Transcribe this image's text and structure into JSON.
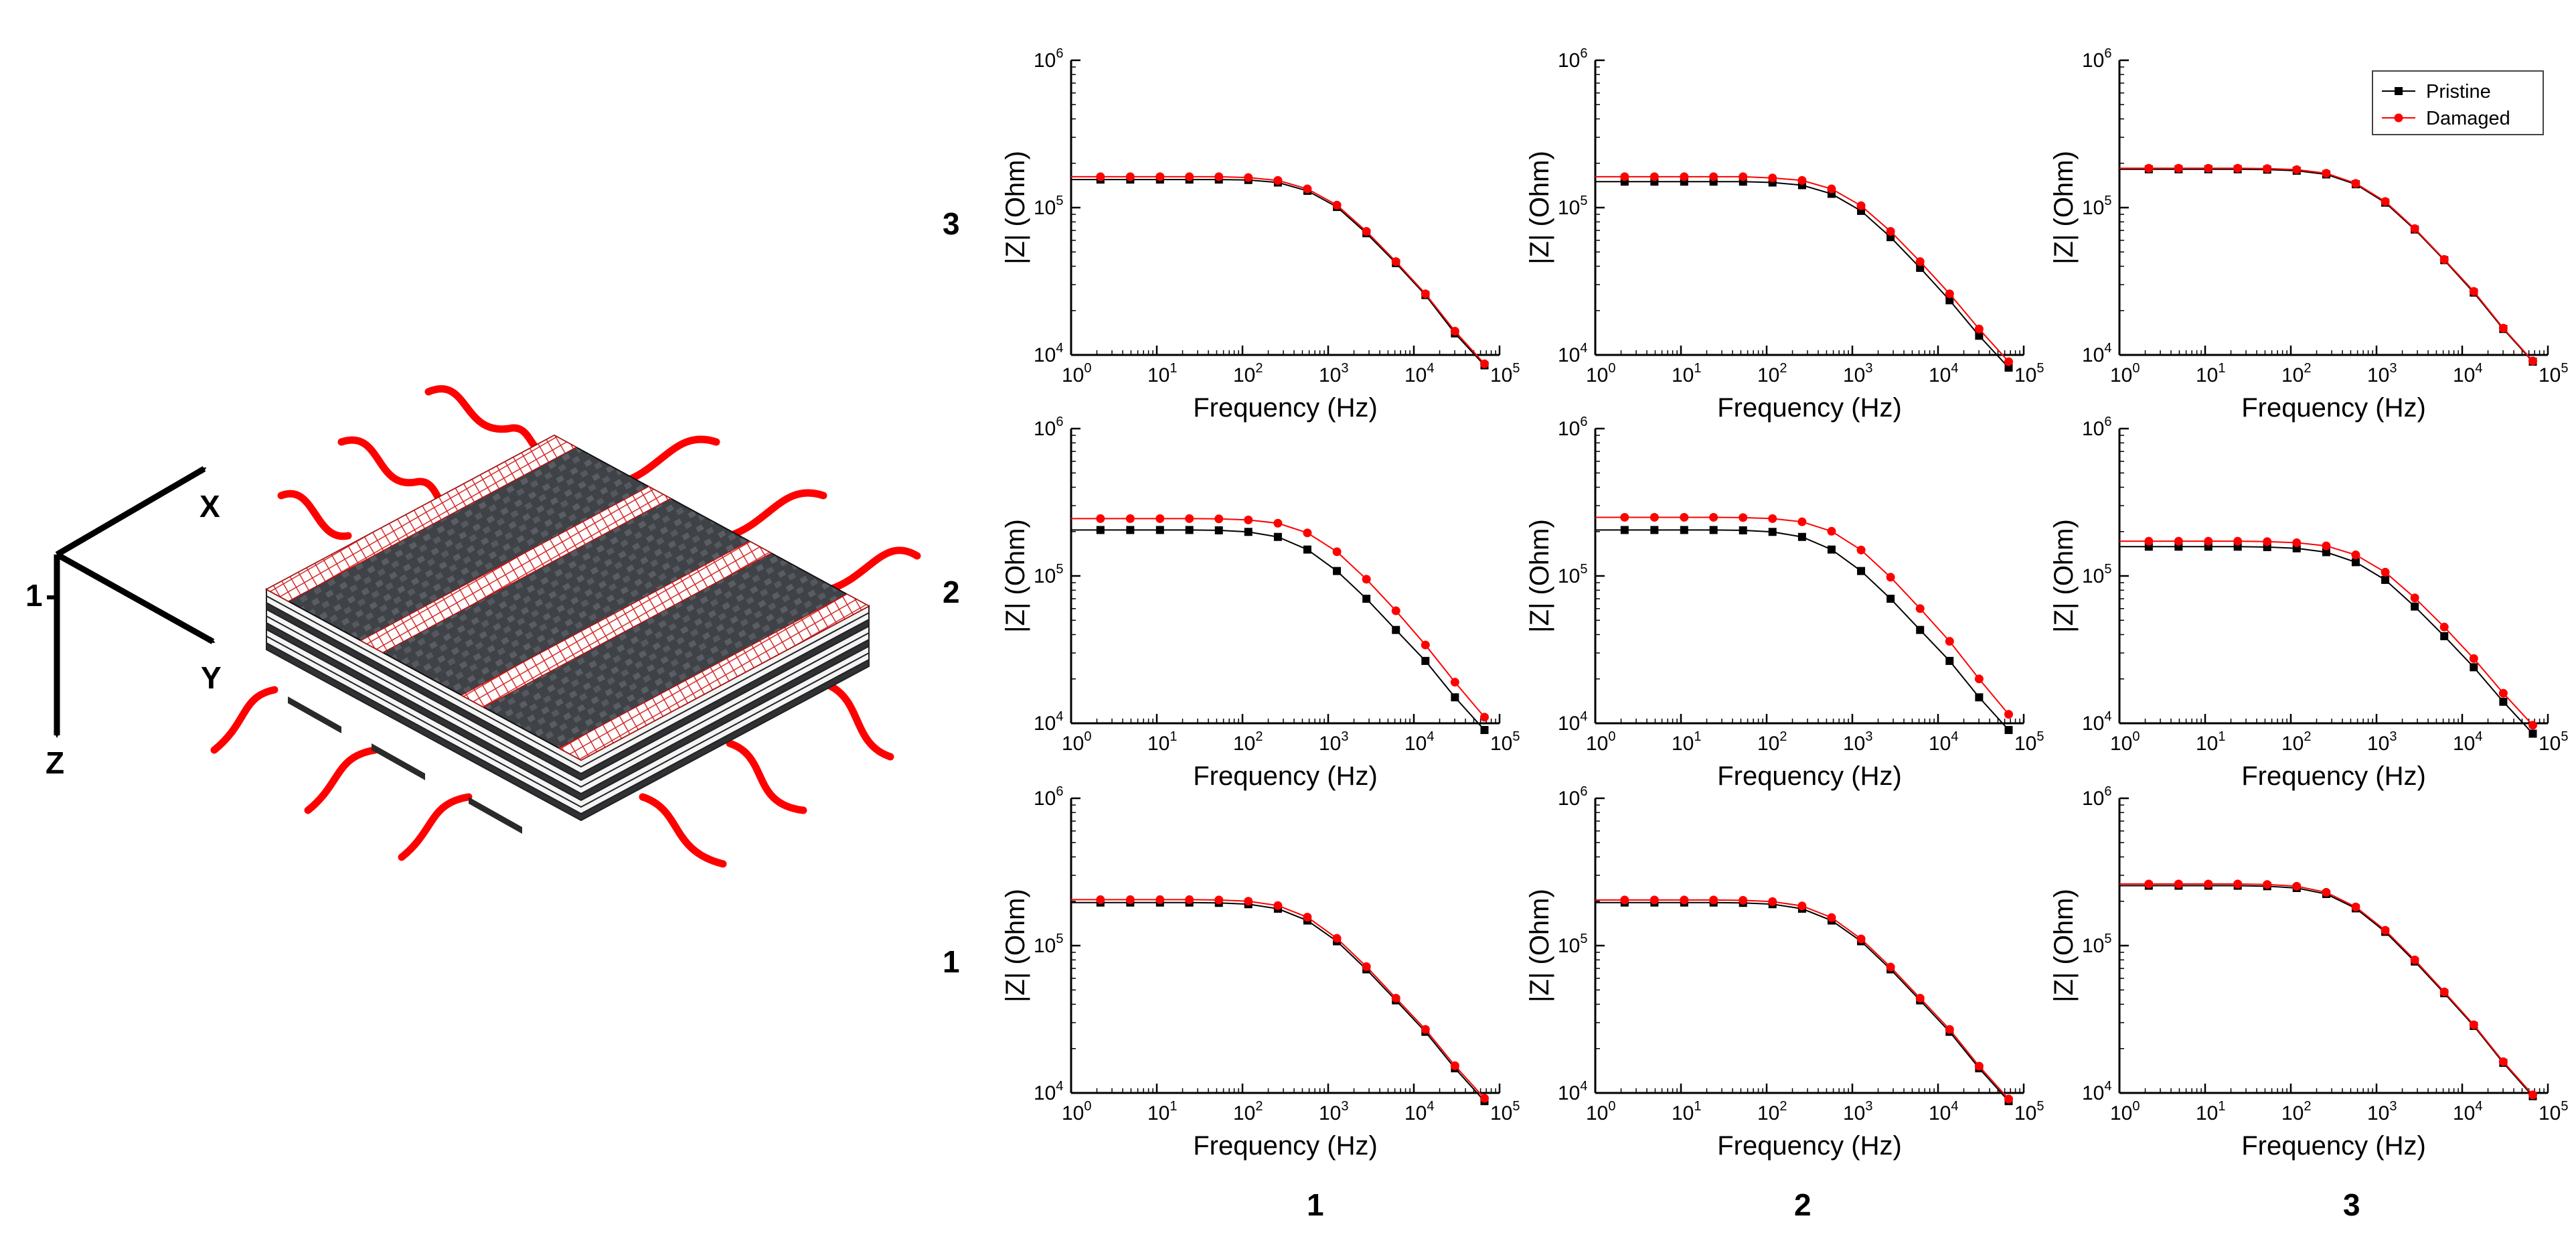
{
  "figure": {
    "axes_label": {
      "x": "X",
      "y": "Y",
      "z": "Z",
      "origin": "1"
    },
    "row_labels": [
      "3",
      "2",
      "1"
    ],
    "col_labels": [
      "1",
      "2",
      "3"
    ],
    "colors": {
      "pristine": "#000000",
      "damaged": "#ff0000",
      "laminate_dark": "#4a4d52",
      "laminate_grid": "#cc2222"
    }
  },
  "chart_data": [
    {
      "type": "line",
      "row": "3",
      "col": "1",
      "xlabel": "Frequency (Hz)",
      "ylabel": "|Z| (Ohm)",
      "xscale": "log",
      "yscale": "log",
      "xlim": [
        1,
        100000
      ],
      "ylim": [
        10000,
        1000000
      ],
      "xticks": [
        "10^0",
        "10^1",
        "10^2",
        "10^3",
        "10^4",
        "10^5"
      ],
      "yticks": [
        "10^4",
        "10^5",
        "10^6"
      ],
      "legend": false,
      "series": [
        {
          "name": "Pristine",
          "x": [
            2.2,
            4.9,
            10.9,
            24,
            53,
            117,
            259,
            572,
            1265,
            2795,
            6177,
            13650,
            30170,
            66700
          ],
          "y": [
            155000,
            155000,
            155000,
            155000,
            155000,
            154000,
            148000,
            130000,
            101000,
            67000,
            42000,
            25500,
            14000,
            8500
          ]
        },
        {
          "name": "Damaged",
          "x": [
            2.2,
            4.9,
            10.9,
            24,
            53,
            117,
            259,
            572,
            1265,
            2795,
            6177,
            13650,
            30170,
            66700
          ],
          "y": [
            162000,
            162000,
            162000,
            162000,
            162000,
            160000,
            153000,
            134000,
            104000,
            69000,
            43000,
            26000,
            14500,
            8700
          ]
        }
      ]
    },
    {
      "type": "line",
      "row": "3",
      "col": "2",
      "xlabel": "Frequency (Hz)",
      "ylabel": "|Z| (Ohm)",
      "xscale": "log",
      "yscale": "log",
      "xlim": [
        1,
        100000
      ],
      "ylim": [
        10000,
        1000000
      ],
      "xticks": [
        "10^0",
        "10^1",
        "10^2",
        "10^3",
        "10^4",
        "10^5"
      ],
      "yticks": [
        "10^4",
        "10^5",
        "10^6"
      ],
      "legend": false,
      "series": [
        {
          "name": "Pristine",
          "x": [
            2.2,
            4.9,
            10.9,
            24,
            53,
            117,
            259,
            572,
            1265,
            2795,
            6177,
            13650,
            30170,
            66700
          ],
          "y": [
            150000,
            150000,
            150000,
            150000,
            150000,
            148000,
            142000,
            124000,
            95000,
            63000,
            39000,
            23500,
            13500,
            8200
          ]
        },
        {
          "name": "Damaged",
          "x": [
            2.2,
            4.9,
            10.9,
            24,
            53,
            117,
            259,
            572,
            1265,
            2795,
            6177,
            13650,
            30170,
            66700
          ],
          "y": [
            162000,
            162000,
            162000,
            162000,
            162000,
            159000,
            153000,
            134000,
            103000,
            69000,
            43000,
            26000,
            15000,
            9000
          ]
        }
      ]
    },
    {
      "type": "line",
      "row": "3",
      "col": "3",
      "xlabel": "Frequency (Hz)",
      "ylabel": "|Z| (Ohm)",
      "xscale": "log",
      "yscale": "log",
      "xlim": [
        1,
        100000
      ],
      "ylim": [
        10000,
        1000000
      ],
      "xticks": [
        "10^0",
        "10^1",
        "10^2",
        "10^3",
        "10^4",
        "10^5"
      ],
      "yticks": [
        "10^4",
        "10^5",
        "10^6"
      ],
      "legend": true,
      "legend_position": "top-right",
      "series": [
        {
          "name": "Pristine",
          "x": [
            2.2,
            4.9,
            10.9,
            24,
            53,
            117,
            259,
            572,
            1265,
            2795,
            6177,
            13650,
            30170,
            66700
          ],
          "y": [
            182000,
            182000,
            182000,
            182000,
            181000,
            178000,
            168000,
            144000,
            108000,
            71000,
            44000,
            26500,
            15000,
            9000
          ]
        },
        {
          "name": "Damaged",
          "x": [
            2.2,
            4.9,
            10.9,
            24,
            53,
            117,
            259,
            572,
            1265,
            2795,
            6177,
            13650,
            30170,
            66700
          ],
          "y": [
            185000,
            185000,
            185000,
            185000,
            184000,
            181000,
            171000,
            146000,
            110000,
            72000,
            44500,
            27000,
            15200,
            9100
          ]
        }
      ]
    },
    {
      "type": "line",
      "row": "2",
      "col": "1",
      "xlabel": "Frequency (Hz)",
      "ylabel": "|Z| (Ohm)",
      "xscale": "log",
      "yscale": "log",
      "xlim": [
        1,
        100000
      ],
      "ylim": [
        10000,
        1000000
      ],
      "xticks": [
        "10^0",
        "10^1",
        "10^2",
        "10^3",
        "10^4",
        "10^5"
      ],
      "yticks": [
        "10^4",
        "10^5",
        "10^6"
      ],
      "legend": false,
      "series": [
        {
          "name": "Pristine",
          "x": [
            2.2,
            4.9,
            10.9,
            24,
            53,
            117,
            259,
            572,
            1265,
            2795,
            6177,
            13650,
            30170,
            66700
          ],
          "y": [
            205000,
            205000,
            205000,
            205000,
            204000,
            199000,
            184000,
            151000,
            108000,
            70000,
            43000,
            26500,
            15000,
            9000
          ]
        },
        {
          "name": "Damaged",
          "x": [
            2.2,
            4.9,
            10.9,
            24,
            53,
            117,
            259,
            572,
            1265,
            2795,
            6177,
            13650,
            30170,
            66700
          ],
          "y": [
            245000,
            245000,
            245000,
            245000,
            244000,
            240000,
            228000,
            196000,
            146000,
            95000,
            58000,
            34000,
            19000,
            11000
          ]
        }
      ]
    },
    {
      "type": "line",
      "row": "2",
      "col": "2",
      "xlabel": "Frequency (Hz)",
      "ylabel": "|Z| (Ohm)",
      "xscale": "log",
      "yscale": "log",
      "xlim": [
        1,
        100000
      ],
      "ylim": [
        10000,
        1000000
      ],
      "xticks": [
        "10^0",
        "10^1",
        "10^2",
        "10^3",
        "10^4",
        "10^5"
      ],
      "yticks": [
        "10^4",
        "10^5",
        "10^6"
      ],
      "legend": false,
      "series": [
        {
          "name": "Pristine",
          "x": [
            2.2,
            4.9,
            10.9,
            24,
            53,
            117,
            259,
            572,
            1265,
            2795,
            6177,
            13650,
            30170,
            66700
          ],
          "y": [
            205000,
            205000,
            205000,
            205000,
            204000,
            199000,
            184000,
            151000,
            108000,
            70000,
            43000,
            26500,
            15000,
            9000
          ]
        },
        {
          "name": "Damaged",
          "x": [
            2.2,
            4.9,
            10.9,
            24,
            53,
            117,
            259,
            572,
            1265,
            2795,
            6177,
            13650,
            30170,
            66700
          ],
          "y": [
            250000,
            250000,
            250000,
            250000,
            249000,
            245000,
            233000,
            201000,
            150000,
            98000,
            60000,
            36000,
            20000,
            11500
          ]
        }
      ]
    },
    {
      "type": "line",
      "row": "2",
      "col": "3",
      "xlabel": "Frequency (Hz)",
      "ylabel": "|Z| (Ohm)",
      "xscale": "log",
      "yscale": "log",
      "xlim": [
        1,
        100000
      ],
      "ylim": [
        10000,
        1000000
      ],
      "xticks": [
        "10^0",
        "10^1",
        "10^2",
        "10^3",
        "10^4",
        "10^5"
      ],
      "yticks": [
        "10^4",
        "10^5",
        "10^6"
      ],
      "legend": false,
      "series": [
        {
          "name": "Pristine",
          "x": [
            2.2,
            4.9,
            10.9,
            24,
            53,
            117,
            259,
            572,
            1265,
            2795,
            6177,
            13650,
            30170,
            66700
          ],
          "y": [
            158000,
            158000,
            158000,
            158000,
            157000,
            154000,
            145000,
            124000,
            94000,
            62000,
            39000,
            24000,
            14000,
            8500
          ]
        },
        {
          "name": "Damaged",
          "x": [
            2.2,
            4.9,
            10.9,
            24,
            53,
            117,
            259,
            572,
            1265,
            2795,
            6177,
            13650,
            30170,
            66700
          ],
          "y": [
            172000,
            172000,
            172000,
            172000,
            171000,
            168000,
            160000,
            139000,
            106000,
            71000,
            45000,
            27500,
            16000,
            9700
          ]
        }
      ]
    },
    {
      "type": "line",
      "row": "1",
      "col": "1",
      "xlabel": "Frequency (Hz)",
      "ylabel": "|Z| (Ohm)",
      "xscale": "log",
      "yscale": "log",
      "xlim": [
        1,
        100000
      ],
      "ylim": [
        10000,
        1000000
      ],
      "xticks": [
        "10^0",
        "10^1",
        "10^2",
        "10^3",
        "10^4",
        "10^5"
      ],
      "yticks": [
        "10^4",
        "10^5",
        "10^6"
      ],
      "legend": false,
      "series": [
        {
          "name": "Pristine",
          "x": [
            2.2,
            4.9,
            10.9,
            24,
            53,
            117,
            259,
            572,
            1265,
            2795,
            6177,
            13650,
            30170,
            66700
          ],
          "y": [
            196000,
            196000,
            196000,
            196000,
            195000,
            191000,
            178000,
            148000,
            107000,
            69000,
            42500,
            26000,
            14700,
            8800
          ]
        },
        {
          "name": "Damaged",
          "x": [
            2.2,
            4.9,
            10.9,
            24,
            53,
            117,
            259,
            572,
            1265,
            2795,
            6177,
            13650,
            30170,
            66700
          ],
          "y": [
            205000,
            205000,
            205000,
            205000,
            204000,
            200000,
            187000,
            156000,
            112000,
            72000,
            44000,
            27000,
            15300,
            9200
          ]
        }
      ]
    },
    {
      "type": "line",
      "row": "1",
      "col": "2",
      "xlabel": "Frequency (Hz)",
      "ylabel": "|Z| (Ohm)",
      "xscale": "log",
      "yscale": "log",
      "xlim": [
        1,
        100000
      ],
      "ylim": [
        10000,
        1000000
      ],
      "xticks": [
        "10^0",
        "10^1",
        "10^2",
        "10^3",
        "10^4",
        "10^5"
      ],
      "yticks": [
        "10^4",
        "10^5",
        "10^6"
      ],
      "legend": false,
      "series": [
        {
          "name": "Pristine",
          "x": [
            2.2,
            4.9,
            10.9,
            24,
            53,
            117,
            259,
            572,
            1265,
            2795,
            6177,
            13650,
            30170,
            66700
          ],
          "y": [
            196000,
            196000,
            196000,
            196000,
            195000,
            191000,
            178000,
            148000,
            107000,
            69000,
            42500,
            26000,
            14700,
            8800
          ]
        },
        {
          "name": "Damaged",
          "x": [
            2.2,
            4.9,
            10.9,
            24,
            53,
            117,
            259,
            572,
            1265,
            2795,
            6177,
            13650,
            30170,
            66700
          ],
          "y": [
            204000,
            204000,
            204000,
            204000,
            203000,
            199000,
            186000,
            155000,
            111000,
            71500,
            44000,
            27000,
            15200,
            9100
          ]
        }
      ]
    },
    {
      "type": "line",
      "row": "1",
      "col": "3",
      "xlabel": "Frequency (Hz)",
      "ylabel": "|Z| (Ohm)",
      "xscale": "log",
      "yscale": "log",
      "xlim": [
        1,
        100000
      ],
      "ylim": [
        10000,
        1000000
      ],
      "xticks": [
        "10^0",
        "10^1",
        "10^2",
        "10^3",
        "10^4",
        "10^5"
      ],
      "yticks": [
        "10^4",
        "10^5",
        "10^6"
      ],
      "legend": false,
      "series": [
        {
          "name": "Pristine",
          "x": [
            2.2,
            4.9,
            10.9,
            24,
            53,
            117,
            259,
            572,
            1265,
            2795,
            6177,
            13650,
            30170,
            66700
          ],
          "y": [
            255000,
            255000,
            255000,
            255000,
            253000,
            246000,
            224000,
            179000,
            124000,
            78000,
            47500,
            28500,
            16000,
            9500
          ]
        },
        {
          "name": "Damaged",
          "x": [
            2.2,
            4.9,
            10.9,
            24,
            53,
            117,
            259,
            572,
            1265,
            2795,
            6177,
            13650,
            30170,
            66700
          ],
          "y": [
            262000,
            262000,
            262000,
            262000,
            260000,
            253000,
            230000,
            183000,
            127000,
            80000,
            48500,
            29000,
            16300,
            9700
          ]
        }
      ]
    }
  ]
}
